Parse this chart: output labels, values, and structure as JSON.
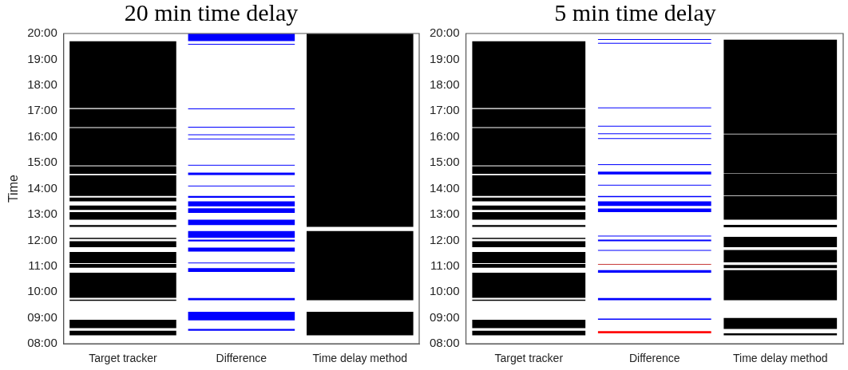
{
  "chart_data": [
    {
      "type": "bar",
      "title": "20 min time delay",
      "ylabel": "Time",
      "categories": [
        "Target tracker",
        "Difference",
        "Time delay method"
      ],
      "ylim": [
        8,
        20
      ],
      "yticks": [
        {
          "value": 8,
          "label": "08:00"
        },
        {
          "value": 9,
          "label": "09:00"
        },
        {
          "value": 10,
          "label": "10:00"
        },
        {
          "value": 11,
          "label": "11:00"
        },
        {
          "value": 12,
          "label": "12:00"
        },
        {
          "value": 13,
          "label": "13:00"
        },
        {
          "value": 14,
          "label": "14:00"
        },
        {
          "value": 15,
          "label": "15:00"
        },
        {
          "value": 16,
          "label": "16:00"
        },
        {
          "value": 17,
          "label": "17:00"
        },
        {
          "value": 18,
          "label": "18:00"
        },
        {
          "value": 19,
          "label": "19:00"
        },
        {
          "value": 20,
          "label": "20:00"
        }
      ],
      "series": [
        {
          "color": "#000000",
          "base": [
            17.12,
            null,
            null
          ],
          "values": [
            2.58,
            null,
            null
          ]
        },
        {
          "color": "#000000",
          "base": [
            16.38,
            null,
            null
          ],
          "values": [
            0.7,
            null,
            null
          ]
        },
        {
          "color": "#000000",
          "base": [
            14.9,
            null,
            null
          ],
          "values": [
            1.45,
            null,
            null
          ]
        },
        {
          "color": "#000000",
          "base": [
            14.57,
            null,
            null
          ],
          "values": [
            0.3,
            null,
            null
          ]
        },
        {
          "color": "#000000",
          "base": [
            13.72,
            null,
            null
          ],
          "values": [
            0.8,
            null,
            null
          ]
        },
        {
          "color": "#000000",
          "base": [
            13.51,
            null,
            null
          ],
          "values": [
            0.15,
            null,
            null
          ]
        },
        {
          "color": "#000000",
          "base": [
            13.18,
            null,
            null
          ],
          "values": [
            0.17,
            null,
            null
          ]
        },
        {
          "color": "#000000",
          "base": [
            12.8,
            null,
            null
          ],
          "values": [
            0.29,
            null,
            null
          ]
        },
        {
          "color": "#000000",
          "base": [
            12.52,
            null,
            null
          ],
          "values": [
            0.07,
            null,
            null
          ]
        },
        {
          "color": "#000000",
          "base": [
            12.05,
            null,
            null
          ],
          "values": [
            0.05,
            null,
            null
          ]
        },
        {
          "color": "#000000",
          "base": [
            11.74,
            null,
            null
          ],
          "values": [
            0.23,
            null,
            null
          ]
        },
        {
          "color": "#000000",
          "base": [
            11.12,
            null,
            null
          ],
          "values": [
            0.43,
            null,
            null
          ]
        },
        {
          "color": "#000000",
          "base": [
            10.94,
            null,
            null
          ],
          "values": [
            0.15,
            null,
            null
          ]
        },
        {
          "color": "#000000",
          "base": [
            9.78,
            null,
            null
          ],
          "values": [
            0.97,
            null,
            null
          ]
        },
        {
          "color": "#000000",
          "base": [
            9.66,
            null,
            null
          ],
          "values": [
            0.05,
            null,
            null
          ]
        },
        {
          "color": "#000000",
          "base": [
            8.61,
            null,
            null
          ],
          "values": [
            0.32,
            null,
            null
          ]
        },
        {
          "color": "#000000",
          "base": [
            8.33,
            null,
            null
          ],
          "values": [
            0.18,
            null,
            null
          ]
        },
        {
          "color": "#0000ff",
          "base": [
            null,
            19.71,
            null
          ],
          "values": [
            null,
            0.28,
            null
          ]
        },
        {
          "color": "#0000ff",
          "base": [
            null,
            19.57,
            null
          ],
          "values": [
            null,
            0.02,
            null
          ]
        },
        {
          "color": "#0000ff",
          "base": [
            null,
            17.07,
            null
          ],
          "values": [
            null,
            0.02,
            null
          ]
        },
        {
          "color": "#0000ff",
          "base": [
            null,
            16.36,
            null
          ],
          "values": [
            null,
            0.02,
            null
          ]
        },
        {
          "color": "#0000ff",
          "base": [
            null,
            16.07,
            null
          ],
          "values": [
            null,
            0.02,
            null
          ]
        },
        {
          "color": "#0000ff",
          "base": [
            null,
            15.91,
            null
          ],
          "values": [
            null,
            0.02,
            null
          ]
        },
        {
          "color": "#0000ff",
          "base": [
            null,
            14.89,
            null
          ],
          "values": [
            null,
            0.02,
            null
          ]
        },
        {
          "color": "#0000ff",
          "base": [
            null,
            14.53,
            null
          ],
          "values": [
            null,
            0.09,
            null
          ]
        },
        {
          "color": "#0000ff",
          "base": [
            null,
            14.09,
            null
          ],
          "values": [
            null,
            0.02,
            null
          ]
        },
        {
          "color": "#0000ff",
          "base": [
            null,
            13.65,
            null
          ],
          "values": [
            null,
            0.07,
            null
          ]
        },
        {
          "color": "#0000ff",
          "base": [
            null,
            13.32,
            null
          ],
          "values": [
            null,
            0.19,
            null
          ]
        },
        {
          "color": "#0000ff",
          "base": [
            null,
            13.06,
            null
          ],
          "values": [
            null,
            0.18,
            null
          ]
        },
        {
          "color": "#0000ff",
          "base": [
            null,
            12.59,
            null
          ],
          "values": [
            null,
            0.21,
            null
          ]
        },
        {
          "color": "#0000ff",
          "base": [
            null,
            12.1,
            null
          ],
          "values": [
            null,
            0.26,
            null
          ]
        },
        {
          "color": "#0000ff",
          "base": [
            null,
            11.96,
            null
          ],
          "values": [
            null,
            0.07,
            null
          ]
        },
        {
          "color": "#0000ff",
          "base": [
            null,
            11.57,
            null
          ],
          "values": [
            null,
            0.15,
            null
          ]
        },
        {
          "color": "#0000ff",
          "base": [
            null,
            11.11,
            null
          ],
          "values": [
            null,
            0.02,
            null
          ]
        },
        {
          "color": "#0000ff",
          "base": [
            null,
            10.78,
            null
          ],
          "values": [
            null,
            0.15,
            null
          ]
        },
        {
          "color": "#0000ff",
          "base": [
            null,
            9.69,
            null
          ],
          "values": [
            null,
            0.08,
            null
          ]
        },
        {
          "color": "#0000ff",
          "base": [
            null,
            8.91,
            null
          ],
          "values": [
            null,
            0.33,
            null
          ]
        },
        {
          "color": "#0000ff",
          "base": [
            null,
            8.51,
            null
          ],
          "values": [
            null,
            0.07,
            null
          ]
        },
        {
          "color": "#000000",
          "base": [
            null,
            null,
            12.52
          ],
          "values": [
            null,
            null,
            7.47
          ]
        },
        {
          "color": "#000000",
          "base": [
            null,
            null,
            9.69
          ],
          "values": [
            null,
            null,
            2.67
          ]
        },
        {
          "color": "#000000",
          "base": [
            null,
            null,
            8.33
          ],
          "values": [
            null,
            null,
            0.91
          ]
        }
      ]
    },
    {
      "type": "bar",
      "title": "5 min time delay",
      "categories": [
        "Target tracker",
        "Difference",
        "Time delay method"
      ],
      "ylim": [
        8,
        20
      ],
      "yticks": [
        {
          "value": 8,
          "label": "08:00"
        },
        {
          "value": 9,
          "label": "09:00"
        },
        {
          "value": 10,
          "label": "10:00"
        },
        {
          "value": 11,
          "label": "11:00"
        },
        {
          "value": 12,
          "label": "12:00"
        },
        {
          "value": 13,
          "label": "13:00"
        },
        {
          "value": 14,
          "label": "14:00"
        },
        {
          "value": 15,
          "label": "15:00"
        },
        {
          "value": 16,
          "label": "16:00"
        },
        {
          "value": 17,
          "label": "17:00"
        },
        {
          "value": 18,
          "label": "18:00"
        },
        {
          "value": 19,
          "label": "19:00"
        },
        {
          "value": 20,
          "label": "20:00"
        }
      ],
      "series": [
        {
          "color": "#000000",
          "base": [
            17.12,
            null,
            null
          ],
          "values": [
            2.58,
            null,
            null
          ]
        },
        {
          "color": "#000000",
          "base": [
            16.38,
            null,
            null
          ],
          "values": [
            0.7,
            null,
            null
          ]
        },
        {
          "color": "#000000",
          "base": [
            14.9,
            null,
            null
          ],
          "values": [
            1.45,
            null,
            null
          ]
        },
        {
          "color": "#000000",
          "base": [
            14.57,
            null,
            null
          ],
          "values": [
            0.3,
            null,
            null
          ]
        },
        {
          "color": "#000000",
          "base": [
            13.72,
            null,
            null
          ],
          "values": [
            0.8,
            null,
            null
          ]
        },
        {
          "color": "#000000",
          "base": [
            13.51,
            null,
            null
          ],
          "values": [
            0.15,
            null,
            null
          ]
        },
        {
          "color": "#000000",
          "base": [
            13.18,
            null,
            null
          ],
          "values": [
            0.17,
            null,
            null
          ]
        },
        {
          "color": "#000000",
          "base": [
            12.8,
            null,
            null
          ],
          "values": [
            0.29,
            null,
            null
          ]
        },
        {
          "color": "#000000",
          "base": [
            12.52,
            null,
            null
          ],
          "values": [
            0.07,
            null,
            null
          ]
        },
        {
          "color": "#000000",
          "base": [
            12.05,
            null,
            null
          ],
          "values": [
            0.05,
            null,
            null
          ]
        },
        {
          "color": "#000000",
          "base": [
            11.74,
            null,
            null
          ],
          "values": [
            0.23,
            null,
            null
          ]
        },
        {
          "color": "#000000",
          "base": [
            11.12,
            null,
            null
          ],
          "values": [
            0.43,
            null,
            null
          ]
        },
        {
          "color": "#000000",
          "base": [
            10.94,
            null,
            null
          ],
          "values": [
            0.15,
            null,
            null
          ]
        },
        {
          "color": "#000000",
          "base": [
            9.78,
            null,
            null
          ],
          "values": [
            0.97,
            null,
            null
          ]
        },
        {
          "color": "#000000",
          "base": [
            9.66,
            null,
            null
          ],
          "values": [
            0.05,
            null,
            null
          ]
        },
        {
          "color": "#000000",
          "base": [
            8.61,
            null,
            null
          ],
          "values": [
            0.32,
            null,
            null
          ]
        },
        {
          "color": "#000000",
          "base": [
            8.33,
            null,
            null
          ],
          "values": [
            0.18,
            null,
            null
          ]
        },
        {
          "color": "#0000ff",
          "base": [
            null,
            19.75,
            null
          ],
          "values": [
            null,
            0.02,
            null
          ]
        },
        {
          "color": "#0000ff",
          "base": [
            null,
            19.61,
            null
          ],
          "values": [
            null,
            0.02,
            null
          ]
        },
        {
          "color": "#0000ff",
          "base": [
            null,
            17.11,
            null
          ],
          "values": [
            null,
            0.02,
            null
          ]
        },
        {
          "color": "#0000ff",
          "base": [
            null,
            16.4,
            null
          ],
          "values": [
            null,
            0.02,
            null
          ]
        },
        {
          "color": "#0000ff",
          "base": [
            null,
            16.11,
            null
          ],
          "values": [
            null,
            0.02,
            null
          ]
        },
        {
          "color": "#0000ff",
          "base": [
            null,
            15.92,
            null
          ],
          "values": [
            null,
            0.02,
            null
          ]
        },
        {
          "color": "#0000ff",
          "base": [
            null,
            14.91,
            null
          ],
          "values": [
            null,
            0.02,
            null
          ]
        },
        {
          "color": "#0000ff",
          "base": [
            null,
            14.55,
            null
          ],
          "values": [
            null,
            0.11,
            null
          ]
        },
        {
          "color": "#0000ff",
          "base": [
            null,
            14.12,
            null
          ],
          "values": [
            null,
            0.02,
            null
          ]
        },
        {
          "color": "#0000ff",
          "base": [
            null,
            13.67,
            null
          ],
          "values": [
            null,
            0.05,
            null
          ]
        },
        {
          "color": "#0000ff",
          "base": [
            null,
            13.33,
            null
          ],
          "values": [
            null,
            0.18,
            null
          ]
        },
        {
          "color": "#0000ff",
          "base": [
            null,
            13.09,
            null
          ],
          "values": [
            null,
            0.14,
            null
          ]
        },
        {
          "color": "#0000ff",
          "base": [
            null,
            12.15,
            null
          ],
          "values": [
            null,
            0.02,
            null
          ]
        },
        {
          "color": "#0000ff",
          "base": [
            null,
            11.97,
            null
          ],
          "values": [
            null,
            0.06,
            null
          ]
        },
        {
          "color": "#0000ff",
          "base": [
            null,
            11.6,
            null
          ],
          "values": [
            null,
            0.02,
            null
          ]
        },
        {
          "color": "#c83c3c",
          "base": [
            null,
            11.06,
            null
          ],
          "values": [
            null,
            0.02,
            null
          ]
        },
        {
          "color": "#0000ff",
          "base": [
            null,
            10.75,
            null
          ],
          "values": [
            null,
            0.1,
            null
          ]
        },
        {
          "color": "#0000ff",
          "base": [
            null,
            9.69,
            null
          ],
          "values": [
            null,
            0.08,
            null
          ]
        },
        {
          "color": "#0000ff",
          "base": [
            null,
            8.93,
            null
          ],
          "values": [
            null,
            0.05,
            null
          ]
        },
        {
          "color": "#ff0000",
          "base": [
            null,
            8.41,
            null
          ],
          "values": [
            null,
            0.08,
            null
          ]
        },
        {
          "color": "#000000",
          "base": [
            null,
            null,
            16.12
          ],
          "values": [
            null,
            null,
            3.64
          ]
        },
        {
          "color": "#000000",
          "base": [
            null,
            null,
            14.59
          ],
          "values": [
            null,
            null,
            1.51
          ]
        },
        {
          "color": "#000000",
          "base": [
            null,
            null,
            13.73
          ],
          "values": [
            null,
            null,
            0.84
          ]
        },
        {
          "color": "#000000",
          "base": [
            null,
            null,
            12.8
          ],
          "values": [
            null,
            null,
            0.91
          ]
        },
        {
          "color": "#000000",
          "base": [
            null,
            null,
            12.51
          ],
          "values": [
            null,
            null,
            0.09
          ]
        },
        {
          "color": "#000000",
          "base": [
            null,
            null,
            11.74
          ],
          "values": [
            null,
            null,
            0.4
          ]
        },
        {
          "color": "#000000",
          "base": [
            null,
            null,
            11.15
          ],
          "values": [
            null,
            null,
            0.48
          ]
        },
        {
          "color": "#000000",
          "base": [
            null,
            null,
            10.93
          ],
          "values": [
            null,
            null,
            0.12
          ]
        },
        {
          "color": "#000000",
          "base": [
            null,
            null,
            9.69
          ],
          "values": [
            null,
            null,
            1.16
          ]
        },
        {
          "color": "#000000",
          "base": [
            null,
            null,
            8.58
          ],
          "values": [
            null,
            null,
            0.42
          ]
        },
        {
          "color": "#000000",
          "base": [
            null,
            null,
            8.33
          ],
          "values": [
            null,
            null,
            0.08
          ]
        }
      ]
    }
  ]
}
